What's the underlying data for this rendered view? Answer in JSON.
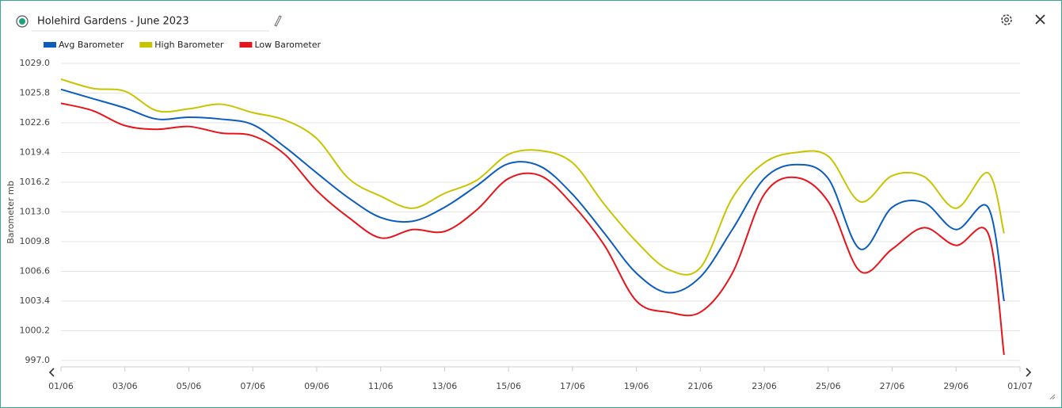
{
  "chart_data": {
    "type": "line",
    "title": "Holehird Gardens - June 2023",
    "ylabel": "Barometer mb",
    "xlim": [
      0,
      30
    ],
    "xticks": [
      {
        "value": 0,
        "label": "01/06"
      },
      {
        "value": 2,
        "label": "03/06"
      },
      {
        "value": 4,
        "label": "05/06"
      },
      {
        "value": 6,
        "label": "07/06"
      },
      {
        "value": 8,
        "label": "09/06"
      },
      {
        "value": 10,
        "label": "11/06"
      },
      {
        "value": 12,
        "label": "13/06"
      },
      {
        "value": 14,
        "label": "15/06"
      },
      {
        "value": 16,
        "label": "17/06"
      },
      {
        "value": 18,
        "label": "19/06"
      },
      {
        "value": 20,
        "label": "21/06"
      },
      {
        "value": 22,
        "label": "23/06"
      },
      {
        "value": 24,
        "label": "25/06"
      },
      {
        "value": 26,
        "label": "27/06"
      },
      {
        "value": 28,
        "label": "29/06"
      },
      {
        "value": 30,
        "label": "01/07"
      }
    ],
    "ylim": [
      997,
      1029
    ],
    "yticks": [
      {
        "value": 997,
        "label": "997.0"
      },
      1000.2,
      1003.4,
      1006.6,
      1009.8,
      {
        "value": 1013,
        "label": "1013.0"
      },
      1016.2,
      1019.4,
      1022.6,
      1025.8,
      {
        "value": 1029,
        "label": "1029.0"
      }
    ],
    "grid": true,
    "legend": "top-left",
    "x": [
      0,
      1,
      2,
      3,
      4,
      5,
      6,
      7,
      8,
      9,
      10,
      11,
      12,
      13,
      14,
      15,
      16,
      17,
      18,
      19,
      20,
      21,
      22,
      23,
      24,
      25,
      26,
      27,
      28,
      29,
      29.5
    ],
    "series": [
      {
        "name": "Avg Barometer",
        "color": "#0b5cbf",
        "values": [
          1026.2,
          1025.2,
          1024.2,
          1023.0,
          1023.2,
          1023.0,
          1022.4,
          1020.0,
          1017.2,
          1014.5,
          1012.4,
          1012.0,
          1013.5,
          1015.8,
          1018.2,
          1017.9,
          1014.9,
          1010.7,
          1006.4,
          1004.3,
          1006.0,
          1011.1,
          1016.6,
          1018.1,
          1016.6,
          1009.0,
          1013.5,
          1014.0,
          1011.1,
          1013.5,
          1003.4
        ]
      },
      {
        "name": "High Barometer",
        "color": "#c9c400",
        "values": [
          1027.3,
          1026.3,
          1026.0,
          1023.9,
          1024.1,
          1024.6,
          1023.7,
          1022.9,
          1020.9,
          1016.6,
          1014.7,
          1013.4,
          1015.0,
          1016.4,
          1019.2,
          1019.6,
          1018.3,
          1013.8,
          1009.8,
          1006.8,
          1007.0,
          1014.5,
          1018.3,
          1019.4,
          1019.0,
          1014.1,
          1016.9,
          1016.8,
          1013.4,
          1017.2,
          1010.7
        ]
      },
      {
        "name": "Low Barometer",
        "color": "#e8141b",
        "values": [
          1024.7,
          1023.9,
          1022.3,
          1021.9,
          1022.2,
          1021.5,
          1021.2,
          1019.2,
          1015.3,
          1012.4,
          1010.2,
          1011.1,
          1010.9,
          1013.2,
          1016.6,
          1016.9,
          1013.8,
          1009.4,
          1003.4,
          1002.2,
          1002.2,
          1006.4,
          1014.9,
          1016.7,
          1014.1,
          1006.6,
          1009.0,
          1011.3,
          1009.4,
          1010.7,
          997.6
        ]
      }
    ]
  }
}
